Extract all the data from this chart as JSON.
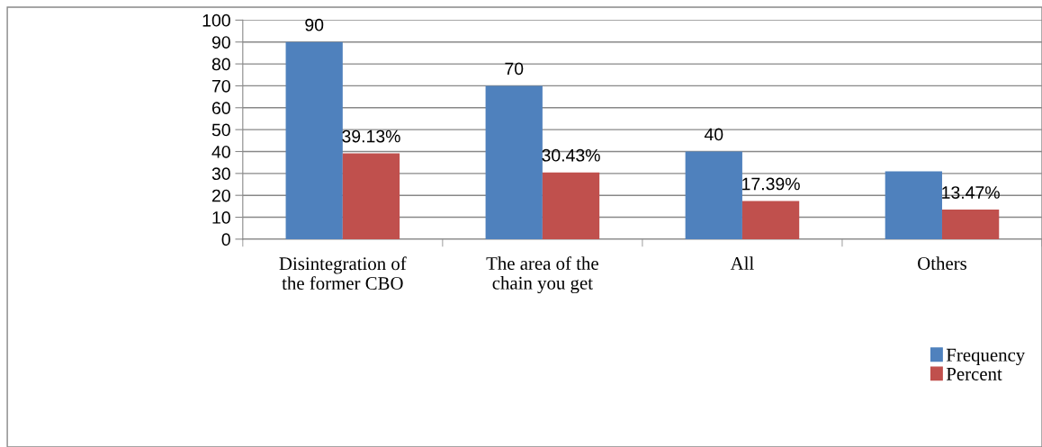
{
  "chart_data": {
    "type": "bar",
    "categories": [
      "Disintegration of\nthe former CBO",
      "The area of the\nchain you get",
      "All",
      "Others"
    ],
    "series": [
      {
        "name": "Frequency",
        "color": "#4f81bd",
        "values": [
          90,
          70,
          40,
          31
        ],
        "value_labels": [
          "90",
          "70",
          "40",
          null
        ]
      },
      {
        "name": "Percent",
        "color": "#c0504d",
        "values": [
          39.13,
          30.43,
          17.39,
          13.47
        ],
        "value_labels": [
          "39.13%",
          "30.43%",
          "17.39%",
          "13.47%"
        ]
      }
    ],
    "ylim": [
      0,
      100
    ],
    "yticks": [
      0,
      10,
      20,
      30,
      40,
      50,
      60,
      70,
      80,
      90,
      100
    ],
    "grid": "y",
    "legend": "bottom right"
  }
}
